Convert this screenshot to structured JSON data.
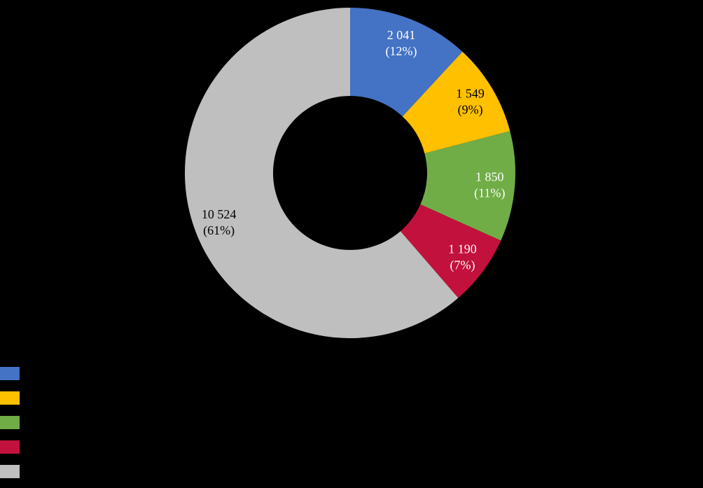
{
  "background_color": "#000000",
  "chart_data": {
    "type": "pie",
    "subtype": "donut",
    "title": "",
    "direction": "clockwise",
    "start_angle_deg": 0,
    "slices": [
      {
        "value": 2041,
        "value_label": "2 041",
        "percent_label": "(12%)",
        "percent": 12,
        "color": "#4472C4",
        "label_color": "#FFFFFF"
      },
      {
        "value": 1549,
        "value_label": "1 549",
        "percent_label": "(9%)",
        "percent": 9,
        "color": "#FFC000",
        "label_color": "#000000"
      },
      {
        "value": 1850,
        "value_label": "1 850",
        "percent_label": "(11%)",
        "percent": 11,
        "color": "#70AD47",
        "label_color": "#FFFFFF"
      },
      {
        "value": 1190,
        "value_label": "1 190",
        "percent_label": "(7%)",
        "percent": 7,
        "color": "#C2113C",
        "label_color": "#FFFFFF"
      },
      {
        "value": 10524,
        "value_label": "10 524",
        "percent_label": "(61%)",
        "percent": 61,
        "color": "#BFBFBF",
        "label_color": "#000000"
      }
    ],
    "legend": {
      "position": "bottom-left",
      "labels_visible": false,
      "swatch_colors": [
        "#4472C4",
        "#FFC000",
        "#70AD47",
        "#C2113C",
        "#BFBFBF"
      ]
    }
  }
}
